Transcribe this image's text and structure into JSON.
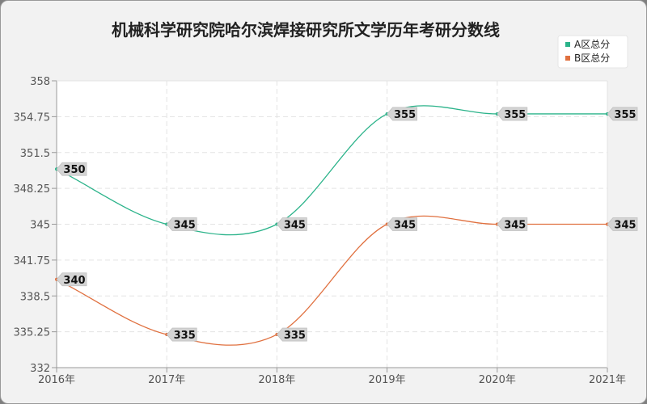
{
  "chart_data": {
    "type": "line",
    "title": "机械科学研究院哈尔滨焊接研究所文学历年考研分数线",
    "categories": [
      "2016年",
      "2017年",
      "2018年",
      "2019年",
      "2020年",
      "2021年"
    ],
    "y_ticks": [
      "332",
      "335.25",
      "338.5",
      "341.75",
      "345",
      "348.25",
      "351.5",
      "354.75",
      "358"
    ],
    "ylim": [
      332,
      358
    ],
    "grid": true,
    "legend_position": "top-right",
    "series": [
      {
        "name": "A区总分",
        "values": [
          350,
          345,
          345,
          355,
          355,
          355
        ],
        "labels": [
          "350",
          "345",
          "345",
          "355",
          "355",
          "355"
        ],
        "color": "#2bb38a"
      },
      {
        "name": "B区总分",
        "values": [
          340,
          335,
          335,
          345,
          345,
          345
        ],
        "labels": [
          "340",
          "335",
          "335",
          "345",
          "345",
          "345"
        ],
        "color": "#e0703f"
      }
    ]
  }
}
